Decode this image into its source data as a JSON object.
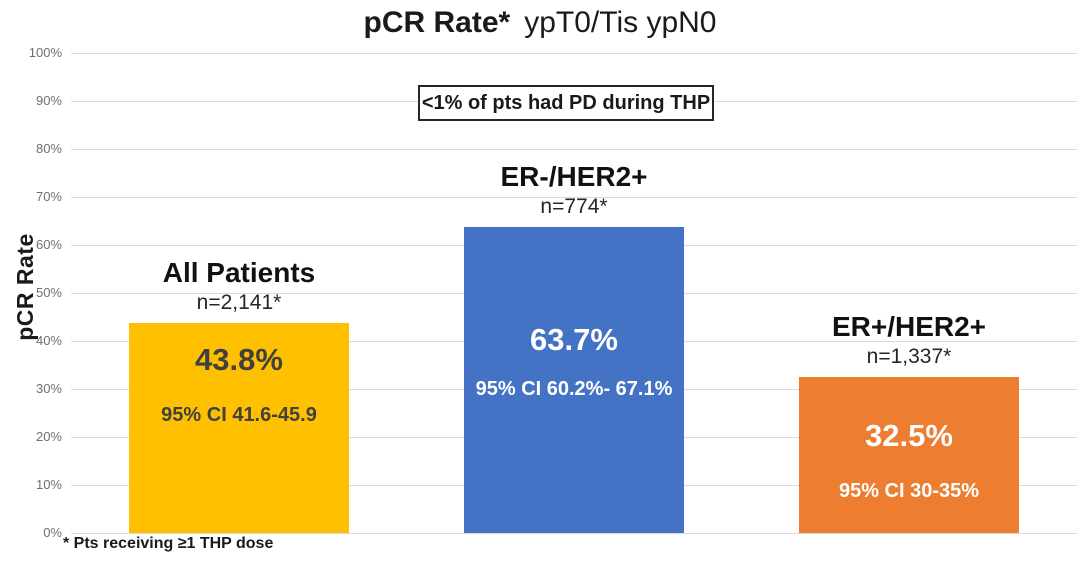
{
  "title": {
    "bold": "pCR Rate*",
    "regular": "ypT0/Tis ypN0"
  },
  "annotation": "<1% of pts had PD during THP",
  "footnote": "* Pts receiving ≥1 THP dose",
  "y_axis": {
    "title": "pCR Rate",
    "ticks": [
      "100%",
      "90%",
      "80%",
      "70%",
      "60%",
      "50%",
      "40%",
      "30%",
      "20%",
      "10%",
      "0%"
    ]
  },
  "colors": {
    "gridline": "#dadada",
    "tick_label": "#6f6f6f",
    "background": "#ffffff"
  },
  "chart_data": {
    "type": "bar",
    "title": "pCR Rate* ypT0/Tis ypN0",
    "xlabel": "",
    "ylabel": "pCR Rate",
    "ylim": [
      0,
      100
    ],
    "y_tick_step": 10,
    "grid": true,
    "legend": false,
    "categories": [
      "All Patients",
      "ER-/HER2+",
      "ER+/HER2+"
    ],
    "values": [
      43.8,
      63.7,
      32.5
    ],
    "bars": [
      {
        "group_label": "All Patients",
        "n_label": "n=2,141*",
        "value": 43.8,
        "value_label": "43.8%",
        "ci_label": "95% CI 41.6-45.9",
        "color": "#FFC000",
        "text_color": "#404040"
      },
      {
        "group_label": "ER-/HER2+",
        "n_label": "n=774*",
        "value": 63.7,
        "value_label": "63.7%",
        "ci_label": "95% CI 60.2%- 67.1%",
        "color": "#4472C4",
        "text_color": "#FFFFFF"
      },
      {
        "group_label": "ER+/HER2+",
        "n_label": "n=1,337*",
        "value": 32.5,
        "value_label": "32.5%",
        "ci_label": "95% CI 30-35%",
        "color": "#ED7D31",
        "text_color": "#FFFFFF"
      }
    ]
  }
}
